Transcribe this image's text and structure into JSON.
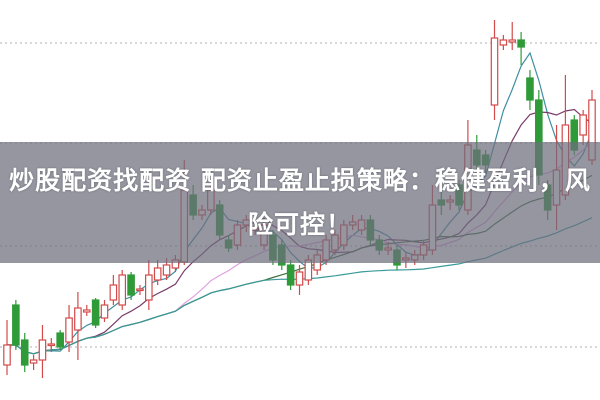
{
  "banner": {
    "title": "炒股配资找配资 配资止盈止损策略：稳健盈利，风险可控！"
  },
  "colors": {
    "up": "#d24a4a",
    "down": "#2f9a38",
    "grid": "#b0b0b0",
    "banner": "#6e6e7d",
    "ma": [
      "#3f8fa0",
      "#7a3a68",
      "#e0a0e0",
      "#3c6e3c",
      "#3a9a9a"
    ]
  },
  "chart_data": {
    "type": "candlestick",
    "grid": "horizontal dotted",
    "moving_average_periods": [
      5,
      10,
      20,
      30,
      60
    ],
    "candles_ohlc": [
      [
        35,
        55,
        80,
        25
      ],
      [
        95,
        55,
        100,
        50
      ],
      [
        60,
        35,
        67,
        28
      ],
      [
        37,
        40,
        45,
        30
      ],
      [
        40,
        60,
        75,
        22
      ],
      [
        55,
        56,
        62,
        48
      ],
      [
        67,
        53,
        70,
        50
      ],
      [
        58,
        82,
        95,
        48
      ],
      [
        70,
        92,
        108,
        40
      ],
      [
        88,
        90,
        95,
        84
      ],
      [
        100,
        75,
        102,
        72
      ],
      [
        82,
        95,
        100,
        78
      ],
      [
        100,
        115,
        125,
        95
      ],
      [
        95,
        125,
        130,
        90
      ],
      [
        125,
        105,
        128,
        100
      ],
      [
        110,
        111,
        115,
        105
      ],
      [
        100,
        125,
        140,
        90
      ],
      [
        120,
        132,
        140,
        115
      ],
      [
        125,
        135,
        142,
        120
      ],
      [
        132,
        140,
        145,
        128
      ],
      [
        138,
        210,
        240,
        135
      ],
      [
        205,
        185,
        215,
        180
      ],
      [
        185,
        190,
        195,
        180
      ],
      [
        190,
        210,
        215,
        185
      ],
      [
        195,
        165,
        200,
        160
      ],
      [
        160,
        152,
        165,
        148
      ],
      [
        155,
        175,
        180,
        150
      ],
      [
        175,
        180,
        185,
        168
      ],
      [
        170,
        172,
        178,
        165
      ],
      [
        155,
        175,
        178,
        150
      ],
      [
        165,
        140,
        170,
        135
      ],
      [
        155,
        135,
        160,
        130
      ],
      [
        135,
        115,
        140,
        110
      ],
      [
        115,
        128,
        135,
        105
      ],
      [
        120,
        140,
        145,
        115
      ],
      [
        130,
        145,
        150,
        125
      ],
      [
        140,
        160,
        165,
        135
      ],
      [
        150,
        165,
        170,
        145
      ],
      [
        155,
        175,
        180,
        150
      ],
      [
        175,
        178,
        185,
        170
      ],
      [
        170,
        180,
        185,
        165
      ],
      [
        180,
        160,
        185,
        155
      ],
      [
        160,
        150,
        165,
        145
      ],
      [
        150,
        152,
        158,
        145
      ],
      [
        150,
        135,
        155,
        130
      ],
      [
        140,
        142,
        148,
        132
      ],
      [
        140,
        145,
        150,
        135
      ],
      [
        145,
        155,
        160,
        140
      ],
      [
        150,
        195,
        215,
        145
      ],
      [
        200,
        195,
        210,
        185
      ],
      [
        198,
        200,
        205,
        190
      ],
      [
        215,
        195,
        220,
        190
      ],
      [
        190,
        255,
        280,
        185
      ],
      [
        250,
        235,
        265,
        230
      ],
      [
        245,
        235,
        250,
        225
      ],
      [
        295,
        362,
        380,
        280
      ],
      [
        355,
        360,
        365,
        350
      ],
      [
        358,
        360,
        378,
        350
      ],
      [
        360,
        353,
        368,
        335
      ],
      [
        322,
        300,
        330,
        290
      ],
      [
        300,
        225,
        310,
        215
      ],
      [
        215,
        190,
        220,
        180
      ],
      [
        195,
        230,
        275,
        170
      ],
      [
        205,
        275,
        325,
        200
      ],
      [
        280,
        250,
        285,
        245
      ],
      [
        265,
        285,
        290,
        255
      ],
      [
        240,
        300,
        310,
        235
      ]
    ]
  }
}
